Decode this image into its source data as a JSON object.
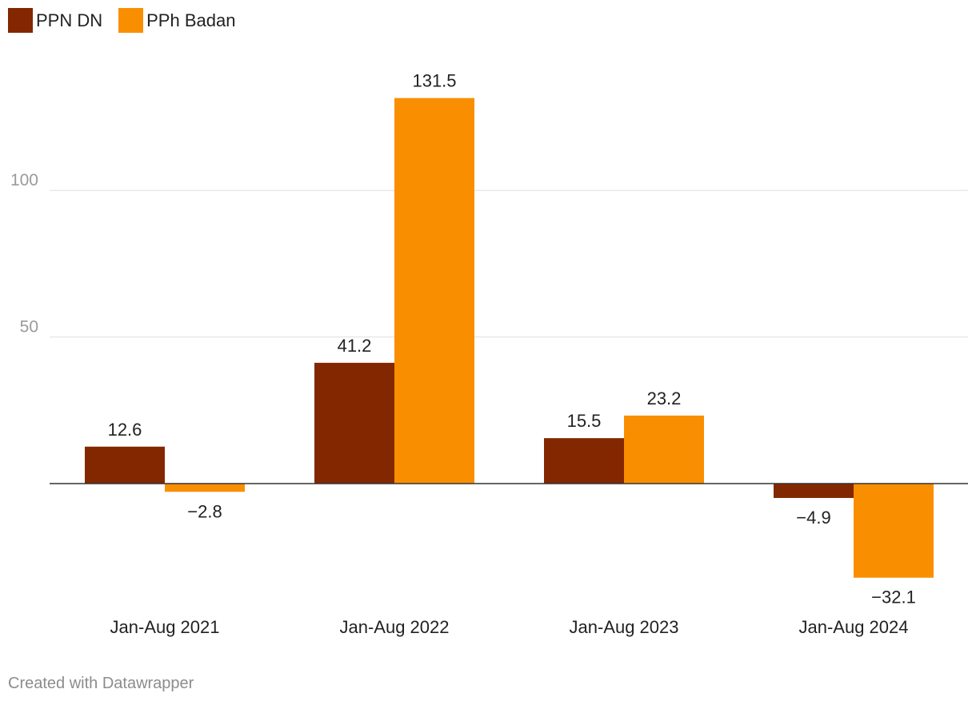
{
  "chart_data": {
    "type": "bar",
    "categories": [
      "Jan-Aug 2021",
      "Jan-Aug 2022",
      "Jan-Aug 2023",
      "Jan-Aug 2024"
    ],
    "series": [
      {
        "name": "PPN DN",
        "values": [
          12.6,
          41.2,
          15.5,
          -4.9
        ],
        "labels": [
          "12.6",
          "41.2",
          "15.5",
          "−4.9"
        ],
        "color": "#832700"
      },
      {
        "name": "PPh Badan",
        "values": [
          -2.8,
          131.5,
          23.2,
          -32.1
        ],
        "labels": [
          "−2.8",
          "131.5",
          "23.2",
          "−32.1"
        ],
        "color": "#f98f00"
      }
    ],
    "yticks": [
      50,
      100
    ],
    "ylim": [
      -40,
      140
    ],
    "title": "",
    "xlabel": "",
    "ylabel": "",
    "grid": true,
    "legend": "top-left"
  },
  "footer": "Created with Datawrapper"
}
